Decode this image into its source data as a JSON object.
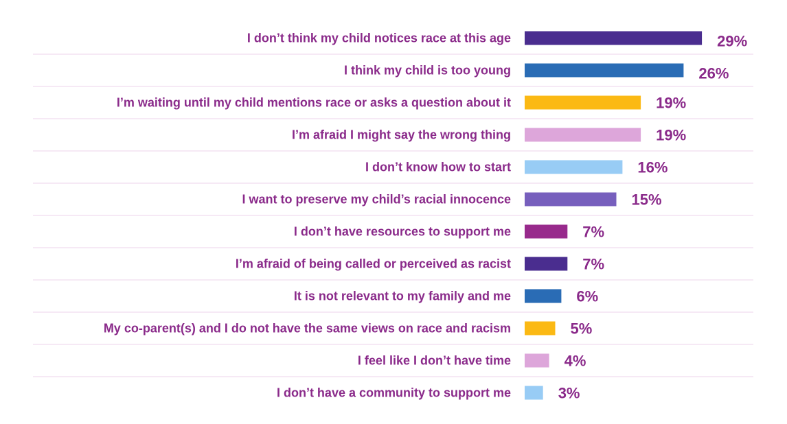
{
  "chart_data": {
    "type": "bar",
    "orientation": "horizontal",
    "categories": [
      "I don’t think my child notices race at this age",
      "I think my child is too young",
      "I’m waiting until my child mentions race or asks a question about it",
      "I’m afraid I might say the wrong thing",
      "I don’t know how to start",
      "I want to preserve my child’s racial innocence",
      "I don’t have resources to support me",
      "I’m afraid of being called or perceived as racist",
      "It is not relevant to my family and me",
      "My co-parent(s) and I do not have the same views on race and racism",
      "I feel like I don’t have time",
      "I don’t have a community to support me"
    ],
    "values": [
      29,
      26,
      19,
      19,
      16,
      15,
      7,
      7,
      6,
      5,
      4,
      3
    ],
    "value_labels": [
      "29%",
      "26%",
      "19%",
      "19%",
      "16%",
      "15%",
      "7%",
      "7%",
      "6%",
      "5%",
      "4%",
      "3%"
    ],
    "bar_colors": [
      "#4a2d8f",
      "#2a6cb5",
      "#fbb914",
      "#dda6da",
      "#98ccf5",
      "#775fbd",
      "#982a8c",
      "#4a2d8f",
      "#2a6cb5",
      "#fbb914",
      "#dda6da",
      "#98ccf5"
    ],
    "title": "",
    "xlabel": "",
    "ylabel": "",
    "unit": "%",
    "grid": false,
    "legend": "none"
  },
  "colors": {
    "label_text": "#8a2a8a",
    "value_text": "#8a2a8a",
    "row_divider": "#f0dcef",
    "background": "#ffffff"
  }
}
